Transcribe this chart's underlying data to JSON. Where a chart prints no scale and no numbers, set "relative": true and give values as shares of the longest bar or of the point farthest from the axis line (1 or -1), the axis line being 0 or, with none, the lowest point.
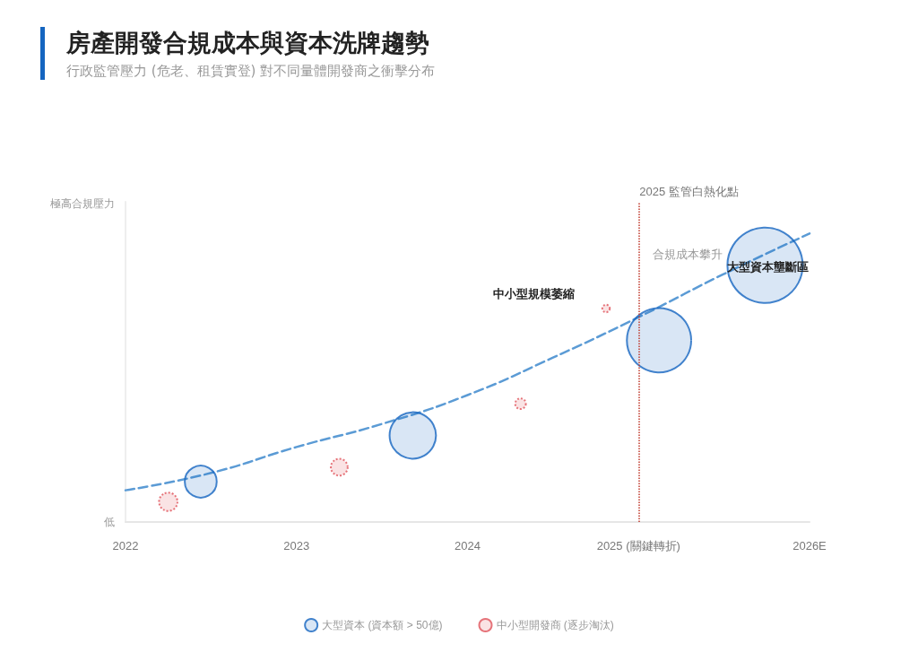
{
  "chart_data": {
    "type": "bubble",
    "title": "房產開發合規成本與資本洗牌趨勢",
    "subtitle": "行政監管壓力 (危老、租賃實登) 對不同量體開發商之衝擊分布",
    "xlim": [
      2022,
      2026
    ],
    "xticks": [
      2022,
      2023,
      2024,
      {
        "value": 2025,
        "label": "2025 (關鍵轉折)"
      },
      {
        "value": 2026,
        "label": "2026E"
      }
    ],
    "relative": true,
    "grid": false,
    "legend": "bottom",
    "series": [
      {
        "type": "line",
        "color": "#5b9bd5",
        "line_style": "dashed",
        "marker": "none",
        "x": [
          2022,
          2022.5,
          2023,
          2023.5,
          2024,
          2024.5,
          2025,
          2025.5,
          2026
        ],
        "values": [
          0.11,
          0.17,
          0.26,
          0.34,
          0.44,
          0.57,
          0.71,
          0.86,
          1
        ]
      },
      {
        "name": "大型資本 (資本額 > 50億)",
        "color": "#1565c0",
        "line_style": "solid",
        "x": [
          2022.44,
          2023.68,
          2025.12,
          2025.74
        ],
        "values": [
          0.14,
          0.3,
          0.63,
          0.89
        ],
        "sizes": [
          0.18,
          0.38,
          0.73,
          1
        ]
      },
      {
        "name": "中小型開發商 (逐步淘汰)",
        "color": "#e0525a",
        "line_style": "dotted",
        "x": [
          2022.25,
          2023.25,
          2024.31,
          2024.81
        ],
        "values": [
          0.07,
          0.19,
          0.41,
          0.74
        ],
        "sizes": [
          0.06,
          0.05,
          0.02,
          0.01
        ]
      }
    ],
    "ref_lines": [
      {
        "axis": "x",
        "value": 2025,
        "label": "2025 監管白熱化點",
        "color": "#c0392b",
        "line_style": "dotted"
      }
    ],
    "annotations": [
      "極高合規壓力",
      "低",
      "大型資本壟斷區",
      "中小型規模萎縮",
      "合規成本攀升"
    ]
  }
}
